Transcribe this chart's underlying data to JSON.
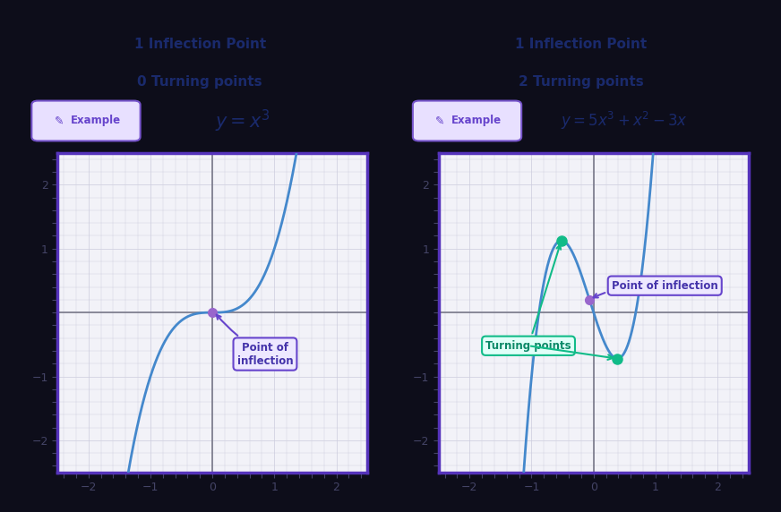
{
  "bg_color": "#0d0d1a",
  "panel_bg": "#f2f2f8",
  "panel_border_color": "#5533bb",
  "title1_line1": "1 Inflection Point",
  "title1_line2": "0 Turning points",
  "title2_line1": "1 Inflection Point",
  "title2_line2": "2 Turning points",
  "title_color": "#1a2a6c",
  "formula1": "$y = x^3$",
  "formula2": "$y = 5x^3 + x^2 - 3x$",
  "formula_color": "#1a2a6c",
  "curve_color": "#4488cc",
  "inflection_color": "#9966cc",
  "turning_color": "#11bb88",
  "axis_color": "#777788",
  "grid_color": "#ccccdd",
  "tick_color": "#444466",
  "annotation_bg": "#ede8ff",
  "annotation_border": "#6644cc",
  "annotation_text_color": "#4433aa",
  "turning_annotation_bg": "#e0fff8",
  "turning_annotation_border": "#11bb88",
  "turning_annotation_text_color": "#0a8866",
  "xlim": [
    -2.5,
    2.5
  ],
  "ylim": [
    -2.5,
    2.5
  ],
  "xticks": [
    -2,
    -1,
    0,
    1,
    2
  ],
  "yticks": [
    -2,
    -1,
    1,
    2
  ],
  "example_bg": "#e8e0ff",
  "example_border": "#7755cc",
  "example_text_color": "#6644cc"
}
